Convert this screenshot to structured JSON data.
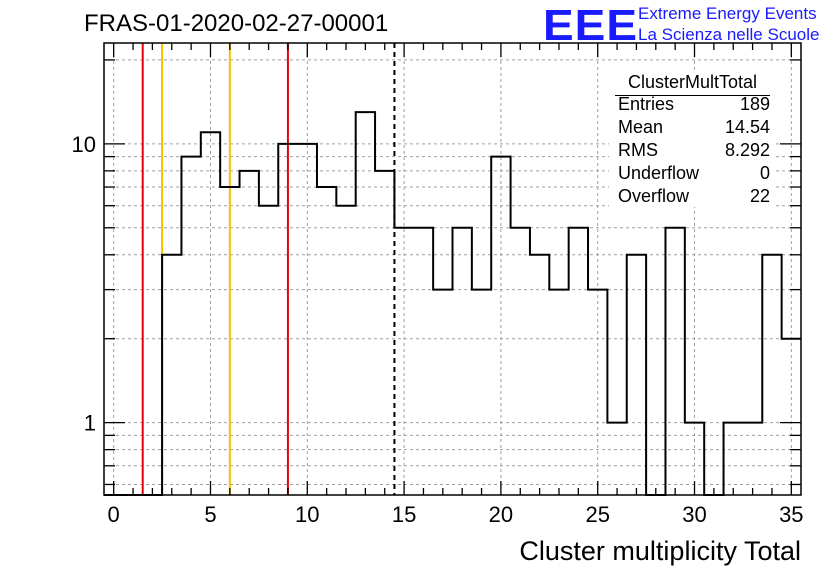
{
  "chart_title": "FRAS-01-2020-02-27-00001",
  "logo": {
    "mark": "EEE",
    "line1": "Extreme Energy Events",
    "line2": "La Scienza nelle Scuole"
  },
  "stats_box": {
    "name": "ClusterMultTotal",
    "rows": [
      {
        "label": "Entries",
        "value": "189"
      },
      {
        "label": "Mean",
        "value": "14.54"
      },
      {
        "label": "RMS",
        "value": "8.292"
      },
      {
        "label": "Underflow",
        "value": "0"
      },
      {
        "label": "Overflow",
        "value": "22"
      }
    ]
  },
  "chart_data": {
    "type": "histogram",
    "xlabel": "Cluster multiplicity Total",
    "ylabel": "",
    "xlim": [
      -0.5,
      35.5
    ],
    "ylim": [
      0.55,
      23
    ],
    "yscale": "log",
    "grid": true,
    "x_ticks": [
      0,
      5,
      10,
      15,
      20,
      25,
      30,
      35
    ],
    "x_tick_labels": [
      "0",
      "5",
      "10",
      "15",
      "20",
      "25",
      "30",
      "35"
    ],
    "y_ticks": [
      1,
      10
    ],
    "y_tick_labels": [
      "1",
      "10"
    ],
    "bin_lo": -0.5,
    "bin_width": 1,
    "values": [
      0,
      0,
      0,
      4,
      9,
      11,
      7,
      8,
      6,
      10,
      10,
      7,
      6,
      13,
      8,
      5,
      5,
      3,
      5,
      3,
      9,
      5,
      4,
      3,
      5,
      3,
      1,
      4,
      0,
      5,
      1,
      0,
      1,
      1,
      4,
      2
    ],
    "vertical_lines": [
      {
        "x": 1.5,
        "color": "#e8000b",
        "style": "solid"
      },
      {
        "x": 2.5,
        "color": "#f2c200",
        "style": "solid"
      },
      {
        "x": 6,
        "color": "#f2c200",
        "style": "solid"
      },
      {
        "x": 9,
        "color": "#e8000b",
        "style": "solid"
      },
      {
        "x": 14.5,
        "color": "#000000",
        "style": "dashed"
      }
    ]
  }
}
